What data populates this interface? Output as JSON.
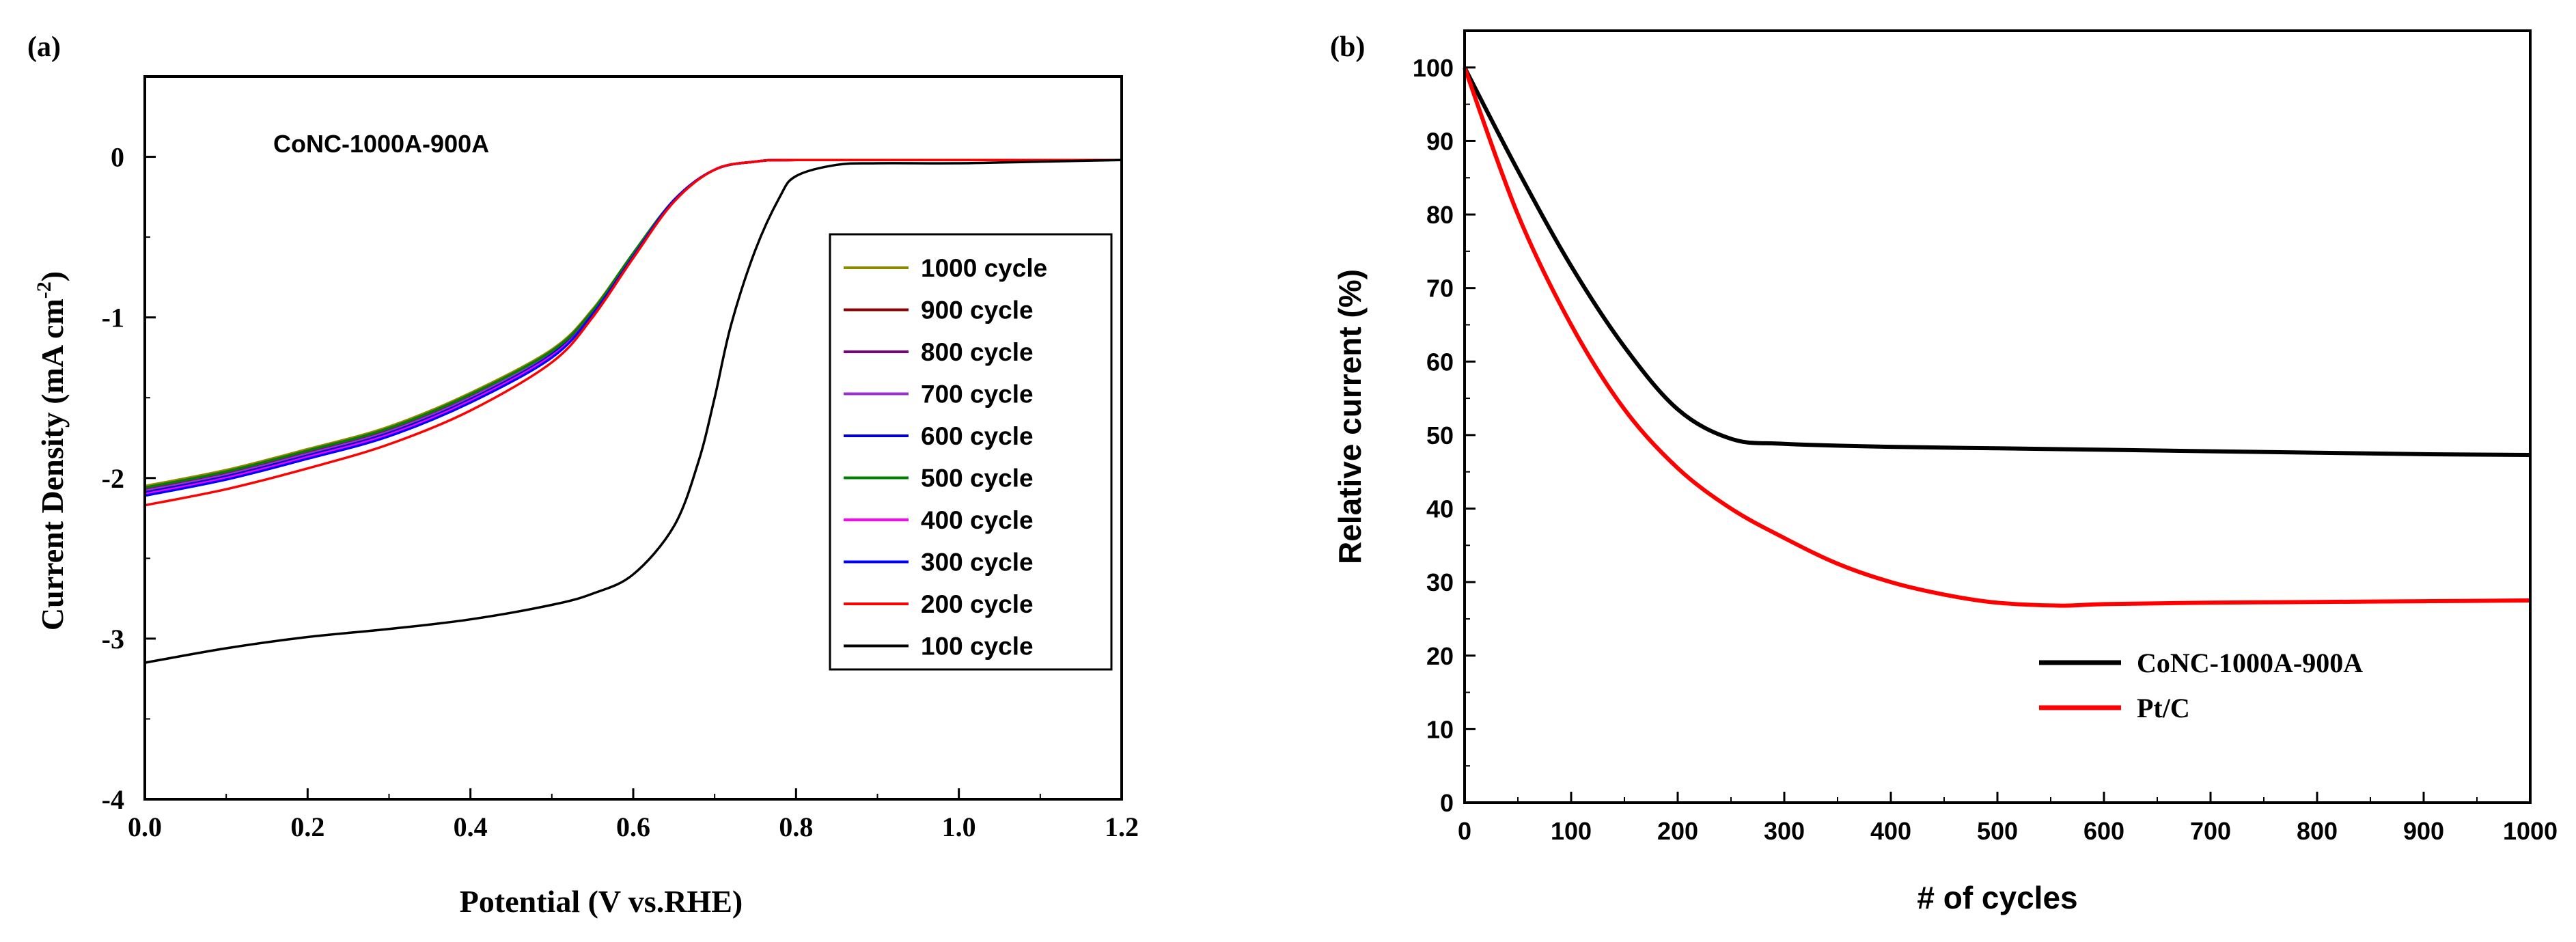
{
  "chart_data": [
    {
      "panel_label": "(a)",
      "type": "line",
      "title": "",
      "annotation": "CoNC-1000A-900A",
      "xlabel": "Potential (V vs.RHE)",
      "ylabel_main": "Current Density (mA cm",
      "ylabel_sup": "-2",
      "ylabel_close": ")",
      "xlim": [
        0.0,
        1.2
      ],
      "ylim": [
        -4,
        0.5
      ],
      "xticks": [
        0.0,
        0.2,
        0.4,
        0.6,
        0.8,
        1.0,
        1.2
      ],
      "xtick_labels": [
        "0.0",
        "0.2",
        "0.4",
        "0.6",
        "0.8",
        "1.0",
        "1.2"
      ],
      "yticks": [
        0,
        -1,
        -2,
        -3,
        -4
      ],
      "ytick_labels": [
        "0",
        "-1",
        "-2",
        "-3",
        "-4"
      ],
      "legend_position": "right",
      "series": [
        {
          "name": "1000 cycle",
          "color": "#8b8b00",
          "x": [
            0.0,
            0.1,
            0.2,
            0.3,
            0.4,
            0.5,
            0.55,
            0.6,
            0.65,
            0.7,
            0.75,
            0.8,
            1.0,
            1.2
          ],
          "y": [
            -2.05,
            -1.95,
            -1.82,
            -1.68,
            -1.47,
            -1.2,
            -0.95,
            -0.6,
            -0.27,
            -0.08,
            -0.03,
            -0.02,
            -0.02,
            -0.02
          ]
        },
        {
          "name": "900 cycle",
          "color": "#8b0000",
          "x": [
            0.0,
            0.1,
            0.2,
            0.3,
            0.4,
            0.5,
            0.55,
            0.6,
            0.65,
            0.7,
            0.75,
            0.8,
            1.0,
            1.2
          ],
          "y": [
            -2.06,
            -1.96,
            -1.83,
            -1.69,
            -1.48,
            -1.21,
            -0.96,
            -0.6,
            -0.27,
            -0.08,
            -0.03,
            -0.02,
            -0.02,
            -0.02
          ]
        },
        {
          "name": "800 cycle",
          "color": "#800080",
          "x": [
            0.0,
            0.1,
            0.2,
            0.3,
            0.4,
            0.5,
            0.55,
            0.6,
            0.65,
            0.7,
            0.75,
            0.8,
            1.0,
            1.2
          ],
          "y": [
            -2.07,
            -1.97,
            -1.84,
            -1.7,
            -1.49,
            -1.21,
            -0.96,
            -0.61,
            -0.27,
            -0.08,
            -0.03,
            -0.02,
            -0.02,
            -0.02
          ]
        },
        {
          "name": "700 cycle",
          "color": "#9932cc",
          "x": [
            0.0,
            0.1,
            0.2,
            0.3,
            0.4,
            0.5,
            0.55,
            0.6,
            0.65,
            0.7,
            0.75,
            0.8,
            1.0,
            1.2
          ],
          "y": [
            -2.08,
            -1.98,
            -1.85,
            -1.71,
            -1.5,
            -1.22,
            -0.97,
            -0.61,
            -0.27,
            -0.08,
            -0.03,
            -0.02,
            -0.02,
            -0.02
          ]
        },
        {
          "name": "600 cycle",
          "color": "#0000cd",
          "x": [
            0.0,
            0.1,
            0.2,
            0.3,
            0.4,
            0.5,
            0.55,
            0.6,
            0.65,
            0.7,
            0.75,
            0.8,
            1.0,
            1.2
          ],
          "y": [
            -2.09,
            -1.99,
            -1.86,
            -1.72,
            -1.51,
            -1.23,
            -0.97,
            -0.61,
            -0.27,
            -0.08,
            -0.03,
            -0.02,
            -0.02,
            -0.02
          ]
        },
        {
          "name": "500 cycle",
          "color": "#008000",
          "x": [
            0.0,
            0.1,
            0.2,
            0.3,
            0.4,
            0.5,
            0.55,
            0.6,
            0.65,
            0.7,
            0.75,
            0.8,
            1.0,
            1.2
          ],
          "y": [
            -2.06,
            -1.96,
            -1.83,
            -1.69,
            -1.48,
            -1.21,
            -0.96,
            -0.6,
            -0.27,
            -0.08,
            -0.03,
            -0.02,
            -0.02,
            -0.02
          ]
        },
        {
          "name": "400 cycle",
          "color": "#ff00ff",
          "x": [
            0.0,
            0.1,
            0.2,
            0.3,
            0.4,
            0.5,
            0.55,
            0.6,
            0.65,
            0.7,
            0.75,
            0.8,
            1.0,
            1.2
          ],
          "y": [
            -2.1,
            -2.0,
            -1.87,
            -1.73,
            -1.52,
            -1.24,
            -0.98,
            -0.62,
            -0.27,
            -0.08,
            -0.03,
            -0.02,
            -0.02,
            -0.02
          ]
        },
        {
          "name": "300 cycle",
          "color": "#0000ff",
          "x": [
            0.0,
            0.1,
            0.2,
            0.3,
            0.4,
            0.5,
            0.55,
            0.6,
            0.65,
            0.7,
            0.75,
            0.8,
            1.0,
            1.2
          ],
          "y": [
            -2.11,
            -2.01,
            -1.88,
            -1.74,
            -1.53,
            -1.25,
            -0.98,
            -0.62,
            -0.27,
            -0.08,
            -0.03,
            -0.02,
            -0.02,
            -0.02
          ]
        },
        {
          "name": "200 cycle",
          "color": "#ff0000",
          "x": [
            0.0,
            0.1,
            0.2,
            0.3,
            0.4,
            0.5,
            0.55,
            0.6,
            0.65,
            0.7,
            0.75,
            0.8,
            1.0,
            1.2
          ],
          "y": [
            -2.17,
            -2.07,
            -1.94,
            -1.79,
            -1.58,
            -1.28,
            -1.0,
            -0.63,
            -0.28,
            -0.08,
            -0.03,
            -0.02,
            -0.02,
            -0.02
          ]
        },
        {
          "name": "100 cycle",
          "color": "#000000",
          "x": [
            0.0,
            0.1,
            0.2,
            0.3,
            0.4,
            0.5,
            0.55,
            0.6,
            0.65,
            0.68,
            0.7,
            0.72,
            0.75,
            0.78,
            0.8,
            0.85,
            0.9,
            1.0,
            1.1,
            1.2
          ],
          "y": [
            -3.15,
            -3.06,
            -2.99,
            -2.94,
            -2.88,
            -2.79,
            -2.72,
            -2.6,
            -2.3,
            -1.9,
            -1.5,
            -1.05,
            -0.58,
            -0.25,
            -0.12,
            -0.05,
            -0.04,
            -0.04,
            -0.03,
            -0.02
          ]
        }
      ]
    },
    {
      "panel_label": "(b)",
      "type": "line",
      "title": "",
      "xlabel": "# of cycles",
      "ylabel": "Relative current (%)",
      "xlim": [
        0,
        1000
      ],
      "ylim": [
        0,
        105
      ],
      "xticks": [
        0,
        100,
        200,
        300,
        400,
        500,
        600,
        700,
        800,
        900,
        1000
      ],
      "xtick_labels": [
        "0",
        "100",
        "200",
        "300",
        "400",
        "500",
        "600",
        "700",
        "800",
        "900",
        "1000"
      ],
      "yticks": [
        0,
        10,
        20,
        30,
        40,
        50,
        60,
        70,
        80,
        90,
        100
      ],
      "ytick_labels": [
        "0",
        "10",
        "20",
        "30",
        "40",
        "50",
        "60",
        "70",
        "80",
        "90",
        "100"
      ],
      "legend_position": "bottom-right",
      "series": [
        {
          "name": "CoNC-1000A-900A",
          "color": "#000000",
          "x": [
            0,
            50,
            100,
            150,
            200,
            250,
            300,
            400,
            500,
            600,
            700,
            800,
            900,
            1000
          ],
          "y": [
            100,
            86,
            73,
            62,
            53.5,
            49.5,
            48.8,
            48.4,
            48.2,
            48.0,
            47.8,
            47.6,
            47.4,
            47.3
          ]
        },
        {
          "name": "Pt/C",
          "color": "#ff0000",
          "x": [
            0,
            50,
            100,
            150,
            200,
            250,
            300,
            350,
            400,
            450,
            500,
            560,
            600,
            700,
            800,
            900,
            1000
          ],
          "y": [
            100,
            80,
            65,
            53.5,
            45.5,
            40,
            36,
            32.5,
            30,
            28.3,
            27.2,
            26.8,
            27.0,
            27.2,
            27.3,
            27.4,
            27.5
          ]
        }
      ]
    }
  ]
}
